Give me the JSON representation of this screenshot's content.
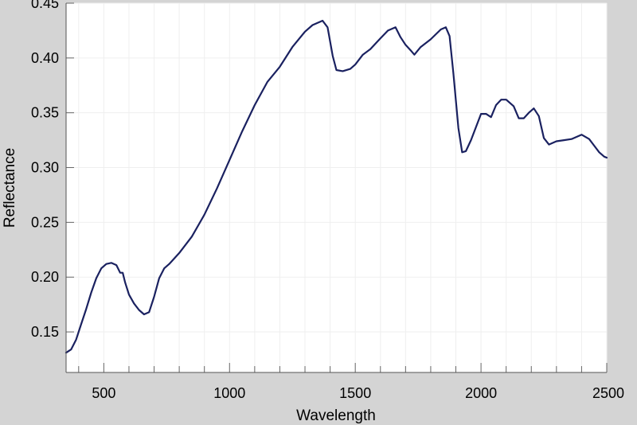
{
  "chart_data": {
    "type": "line",
    "title": "",
    "xlabel": "Wavelength",
    "ylabel": "Reflectance",
    "xlim": [
      350,
      2500
    ],
    "ylim": [
      0.113,
      0.45
    ],
    "x_ticks": [
      500,
      1000,
      1500,
      2000,
      2500
    ],
    "x_tick_labels": [
      "500",
      "1000",
      "1500",
      "2000",
      "2500"
    ],
    "x_minor_step": 100,
    "y_ticks": [
      0.15,
      0.2,
      0.25,
      0.3,
      0.35,
      0.4,
      0.45
    ],
    "y_tick_labels": [
      "0.15",
      "0.20",
      "0.25",
      "0.30",
      "0.35",
      "0.40",
      "0.45"
    ],
    "grid": true,
    "colors": {
      "line": "#1a2160",
      "plot_bg": "#ffffff",
      "figure_bg": "#d4d4d4",
      "grid": "#efefef"
    },
    "series": [
      {
        "name": "",
        "x": [
          350,
          370,
          390,
          410,
          430,
          450,
          470,
          490,
          510,
          530,
          550,
          565,
          575,
          585,
          600,
          620,
          640,
          660,
          680,
          700,
          720,
          740,
          760,
          800,
          850,
          900,
          950,
          1000,
          1050,
          1100,
          1150,
          1200,
          1250,
          1300,
          1330,
          1370,
          1390,
          1410,
          1425,
          1450,
          1480,
          1500,
          1530,
          1560,
          1600,
          1630,
          1660,
          1680,
          1700,
          1720,
          1735,
          1760,
          1800,
          1840,
          1860,
          1875,
          1890,
          1910,
          1925,
          1940,
          1960,
          2000,
          2020,
          2040,
          2060,
          2080,
          2100,
          2130,
          2150,
          2170,
          2190,
          2210,
          2230,
          2250,
          2270,
          2300,
          2330,
          2360,
          2400,
          2430,
          2450,
          2470,
          2490,
          2500
        ],
        "y": [
          0.131,
          0.134,
          0.143,
          0.157,
          0.171,
          0.186,
          0.199,
          0.208,
          0.212,
          0.213,
          0.211,
          0.204,
          0.204,
          0.195,
          0.184,
          0.176,
          0.17,
          0.166,
          0.168,
          0.182,
          0.199,
          0.208,
          0.212,
          0.222,
          0.237,
          0.257,
          0.281,
          0.307,
          0.333,
          0.357,
          0.378,
          0.392,
          0.41,
          0.424,
          0.43,
          0.434,
          0.428,
          0.402,
          0.389,
          0.388,
          0.39,
          0.394,
          0.403,
          0.408,
          0.418,
          0.425,
          0.428,
          0.419,
          0.412,
          0.407,
          0.403,
          0.41,
          0.417,
          0.426,
          0.428,
          0.42,
          0.386,
          0.336,
          0.314,
          0.315,
          0.325,
          0.349,
          0.349,
          0.346,
          0.357,
          0.362,
          0.362,
          0.356,
          0.345,
          0.345,
          0.35,
          0.354,
          0.347,
          0.327,
          0.321,
          0.324,
          0.325,
          0.326,
          0.33,
          0.326,
          0.32,
          0.314,
          0.31,
          0.309
        ]
      }
    ]
  }
}
